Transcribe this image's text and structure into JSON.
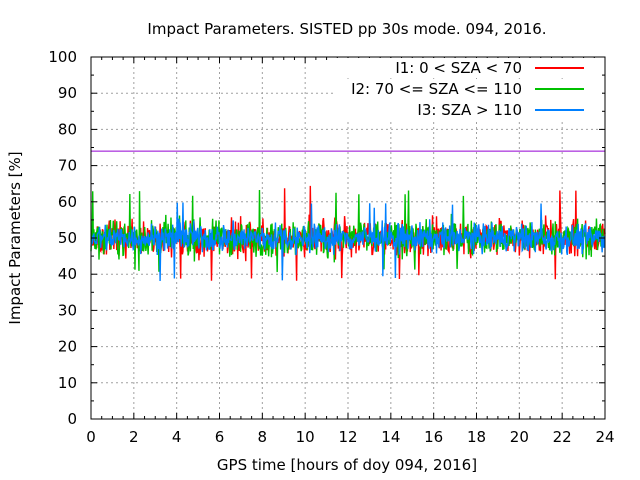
{
  "chart_data": {
    "type": "line",
    "title": "Impact Parameters. SISTED pp 30s mode. 094, 2016.",
    "xlabel": "GPS time [hours of doy 094, 2016]",
    "ylabel": "Impact Parameters [%]",
    "xlim": [
      0,
      24
    ],
    "ylim": [
      0,
      100
    ],
    "x_ticks": [
      "0",
      "2",
      "4",
      "6",
      "8",
      "10",
      "12",
      "14",
      "16",
      "18",
      "20",
      "22",
      "24"
    ],
    "y_ticks": [
      "0",
      "10",
      "20",
      "30",
      "40",
      "50",
      "60",
      "70",
      "80",
      "90",
      "100"
    ],
    "grid": true,
    "legend_position": "top-right",
    "series": [
      {
        "name": "I1: 0 < SZA < 70",
        "color": "#ff0000",
        "mean": 50,
        "low": 41,
        "high": 60,
        "extreme_low": 38,
        "extreme_high": 65
      },
      {
        "name": "I2: 70 <= SZA <= 110",
        "color": "#00c000",
        "mean": 50,
        "low": 42,
        "high": 60,
        "extreme_low": 40,
        "extreme_high": 63.5
      },
      {
        "name": "I3: SZA > 110",
        "color": "#0080ff",
        "mean": 50,
        "low": 43,
        "high": 58,
        "extreme_low": 38,
        "extreme_high": 60
      }
    ],
    "reference_line": {
      "value": 74,
      "color": "#9400d3"
    }
  }
}
